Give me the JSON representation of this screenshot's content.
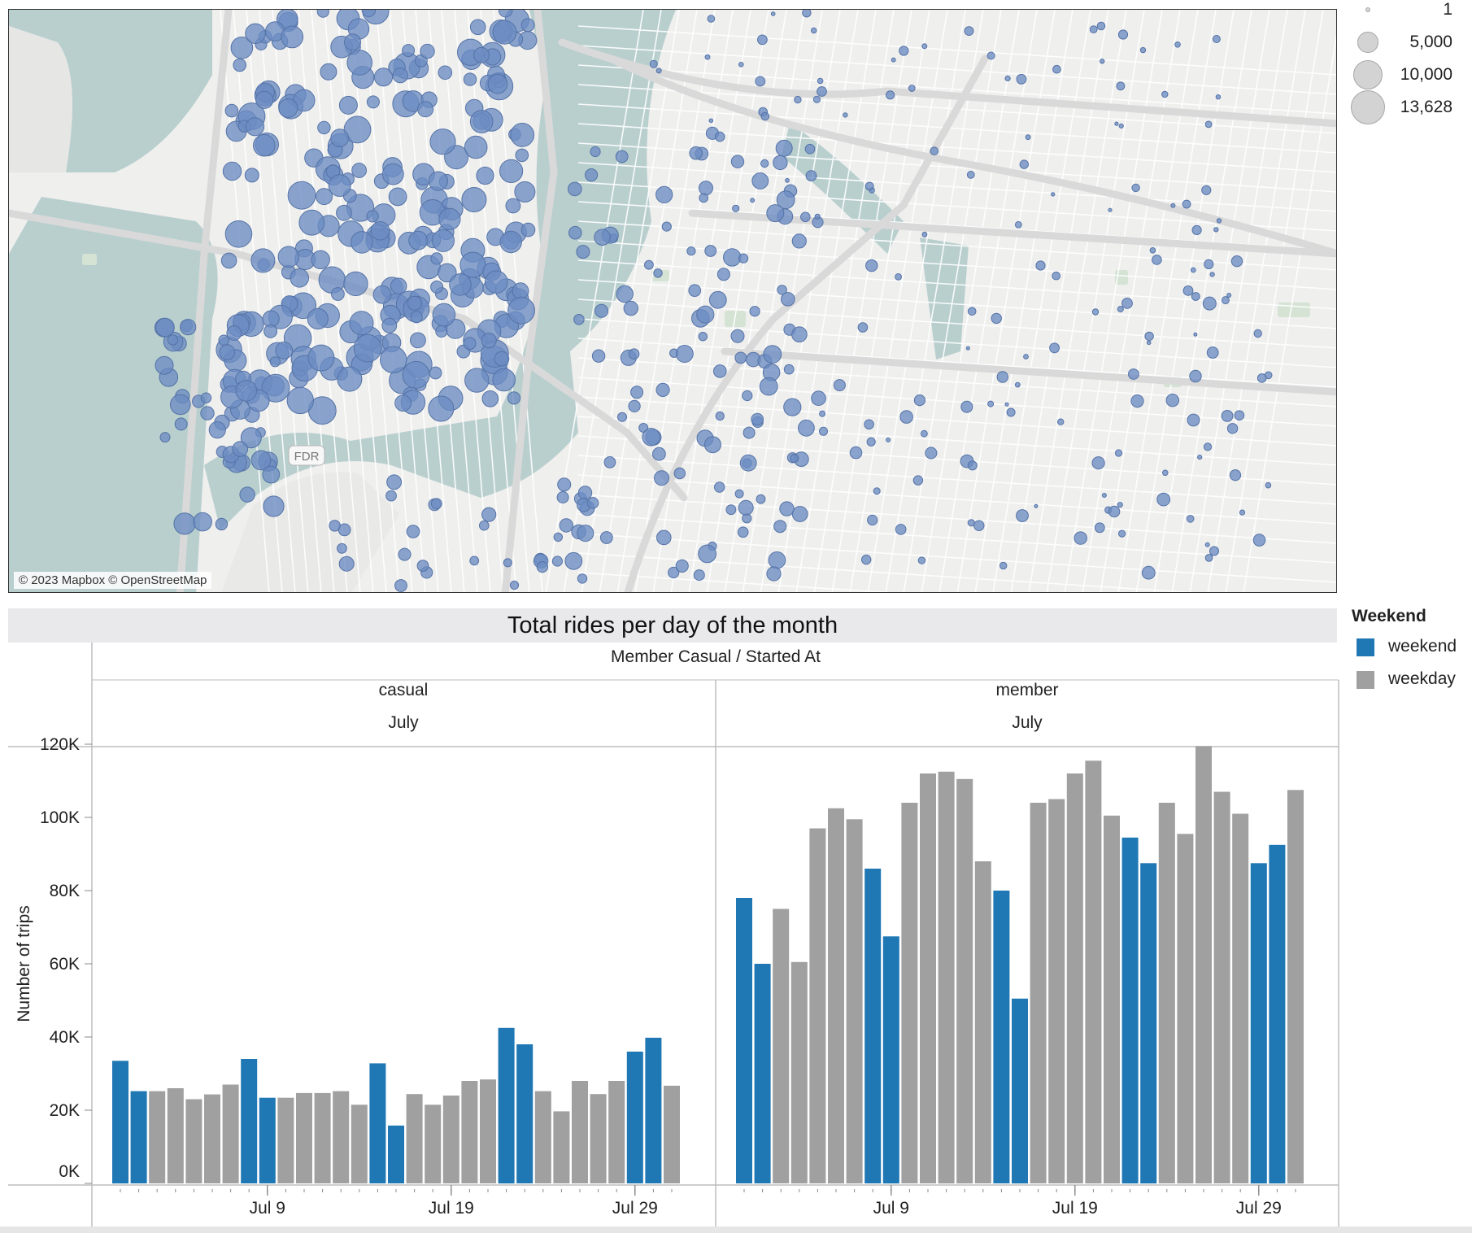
{
  "map": {
    "attribution": "© 2023 Mapbox © OpenStreetMap",
    "road_label": "FDR",
    "bubble_color": "#6b8cc3"
  },
  "size_legend": {
    "entries": [
      {
        "label": "1",
        "value": 1
      },
      {
        "label": "5,000",
        "value": 5000
      },
      {
        "label": "10,000",
        "value": 10000
      },
      {
        "label": "13,628",
        "value": 13628
      }
    ]
  },
  "chart_data": {
    "type": "bar",
    "title": "Total rides per day of the month",
    "header": "Member Casual  /  Started At",
    "ylabel": "Number of trips",
    "ylim": [
      0,
      120000
    ],
    "yticks": [
      {
        "label": "0K",
        "value": 0
      },
      {
        "label": "20K",
        "value": 20000
      },
      {
        "label": "40K",
        "value": 40000
      },
      {
        "label": "60K",
        "value": 60000
      },
      {
        "label": "80K",
        "value": 80000
      },
      {
        "label": "100K",
        "value": 100000
      },
      {
        "label": "120K",
        "value": 120000
      }
    ],
    "x_tick_labels": [
      {
        "label": "Jul 9",
        "day": 9
      },
      {
        "label": "Jul 19",
        "day": 19
      },
      {
        "label": "Jul 29",
        "day": 29
      }
    ],
    "days": [
      1,
      2,
      3,
      4,
      5,
      6,
      7,
      8,
      9,
      10,
      11,
      12,
      13,
      14,
      15,
      16,
      17,
      18,
      19,
      20,
      21,
      22,
      23,
      24,
      25,
      26,
      27,
      28,
      29,
      30,
      31
    ],
    "weekend_days": [
      1,
      2,
      8,
      9,
      15,
      16,
      22,
      23,
      29,
      30
    ],
    "legend": {
      "title": "Weekend",
      "entries": [
        {
          "label": "weekend",
          "color": "#1f77b4"
        },
        {
          "label": "weekday",
          "color": "#a0a0a0"
        }
      ]
    },
    "panels": [
      {
        "name": "casual",
        "month": "July",
        "values": [
          33500,
          25200,
          25200,
          26000,
          23000,
          24300,
          27000,
          34000,
          23400,
          23400,
          24700,
          24700,
          25200,
          21500,
          32800,
          15800,
          24400,
          21500,
          24000,
          28000,
          28400,
          42500,
          38000,
          25200,
          19700,
          28000,
          24400,
          28000,
          36000,
          39800,
          26700
        ]
      },
      {
        "name": "member",
        "month": "July",
        "values": [
          78000,
          60000,
          75000,
          60500,
          97000,
          102500,
          99500,
          86000,
          67500,
          104000,
          112000,
          112500,
          110500,
          88000,
          80000,
          50500,
          104000,
          105000,
          112000,
          115500,
          100500,
          94500,
          87500,
          104000,
          95500,
          119500,
          107000,
          101000,
          87500,
          92500,
          107500
        ]
      }
    ]
  }
}
